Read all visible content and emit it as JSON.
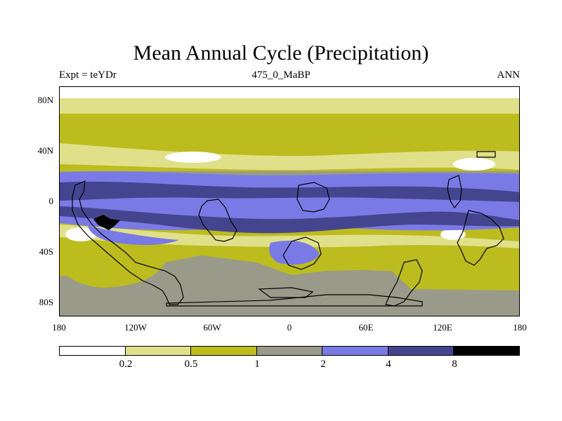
{
  "title": "Mean Annual Cycle (Precipitation)",
  "subtitle_left": "Expt = teYDr",
  "subtitle_center": "475_0_MaBP",
  "subtitle_right": "ANN",
  "y_labels": [
    "80N",
    "40N",
    "0",
    "40S",
    "80S"
  ],
  "x_labels": [
    "180",
    "120W",
    "60W",
    "0",
    "60E",
    "120E",
    "180"
  ],
  "colorbar": {
    "colors": [
      "#ffffff",
      "#e0e08a",
      "#bcbc1e",
      "#9a9a8a",
      "#7a7ae6",
      "#45458f",
      "#000000"
    ],
    "labels": [
      "0.2",
      "0.5",
      "1",
      "2",
      "4",
      "8"
    ]
  },
  "map_colors": {
    "white": "#ffffff",
    "light": "#e0e08a",
    "olive": "#bcbc1e",
    "gray": "#9a9a8a",
    "blue": "#7a7ae6",
    "dark": "#45458f",
    "black": "#000000"
  }
}
